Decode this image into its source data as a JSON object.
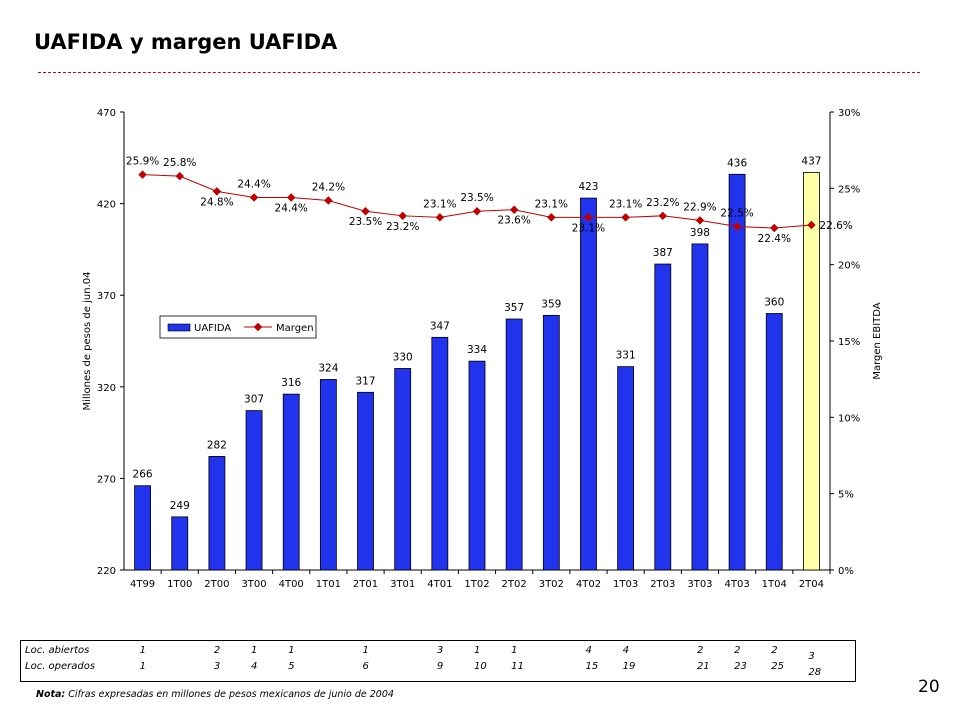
{
  "title": "UAFIDA y margen UAFIDA",
  "note": {
    "label": "Nota:",
    "text": " Cifras expresadas en millones de pesos mexicanos de junio de 2004"
  },
  "page_number": "20",
  "colors": {
    "bar": "#2233ee",
    "bar_highlight": "#ffffa8",
    "line": "#c00000",
    "title_rule": "#d90000"
  },
  "chart_data": {
    "type": "bar",
    "categories": [
      "4T99",
      "1T00",
      "2T00",
      "3T00",
      "4T00",
      "1T01",
      "2T01",
      "3T01",
      "4T01",
      "1T02",
      "2T02",
      "3T02",
      "4T02",
      "1T03",
      "2T03",
      "3T03",
      "4T03",
      "1T04",
      "2T04"
    ],
    "series": [
      {
        "name": "UAFIDA",
        "type": "bar",
        "axis": "left",
        "values": [
          266,
          249,
          282,
          307,
          316,
          324,
          317,
          330,
          347,
          334,
          357,
          359,
          423,
          331,
          387,
          398,
          436,
          360,
          437
        ],
        "labels": [
          "266",
          "249",
          "282",
          "307",
          "316",
          "324",
          "317",
          "330",
          "347",
          "334",
          "357",
          "359",
          "423",
          "331",
          "387",
          "398",
          "436",
          "360",
          "437"
        ],
        "highlight_index": 18
      },
      {
        "name": "Margen",
        "type": "line",
        "axis": "right",
        "values": [
          25.9,
          25.8,
          24.8,
          24.4,
          24.4,
          24.2,
          23.5,
          23.2,
          23.1,
          23.5,
          23.6,
          23.1,
          23.1,
          23.1,
          23.2,
          22.9,
          22.5,
          22.4,
          22.6
        ],
        "labels": [
          "25.9%",
          "25.8%",
          "24.8%",
          "24.4%",
          "24.4%",
          "24.2%",
          "23.5%",
          "23.2%",
          "23.1%",
          "23.5%",
          "23.6%",
          "23.1%",
          "23.1%",
          "23.1%",
          "23.2%",
          "22.9%",
          "22.5%",
          "22.4%",
          "22.6%"
        ]
      }
    ],
    "ylabel": "Millones de pesos de jun.04",
    "y2label": "Margen EBITDA",
    "ylim": [
      220,
      470
    ],
    "y2lim": [
      0,
      30
    ],
    "yticks": [
      "220",
      "270",
      "320",
      "370",
      "420",
      "470"
    ],
    "y2ticks": [
      "0%",
      "5%",
      "10%",
      "15%",
      "20%",
      "25%",
      "30%"
    ],
    "legend": {
      "position": "center-left",
      "entries": [
        "UAFIDA",
        "Margen"
      ]
    },
    "grid": false
  },
  "stats_table": {
    "rows": [
      {
        "label": "Loc. abiertos",
        "cells": [
          "1",
          "",
          "2",
          "1",
          "1",
          "",
          "1",
          "",
          "3",
          "1",
          "1",
          "",
          "4",
          "4",
          "",
          "2",
          "2",
          "2",
          "3"
        ]
      },
      {
        "label": "Loc. operados",
        "cells": [
          "1",
          "",
          "3",
          "4",
          "5",
          "",
          "6",
          "",
          "9",
          "10",
          "11",
          "",
          "15",
          "19",
          "",
          "21",
          "23",
          "25",
          "28"
        ]
      }
    ]
  }
}
